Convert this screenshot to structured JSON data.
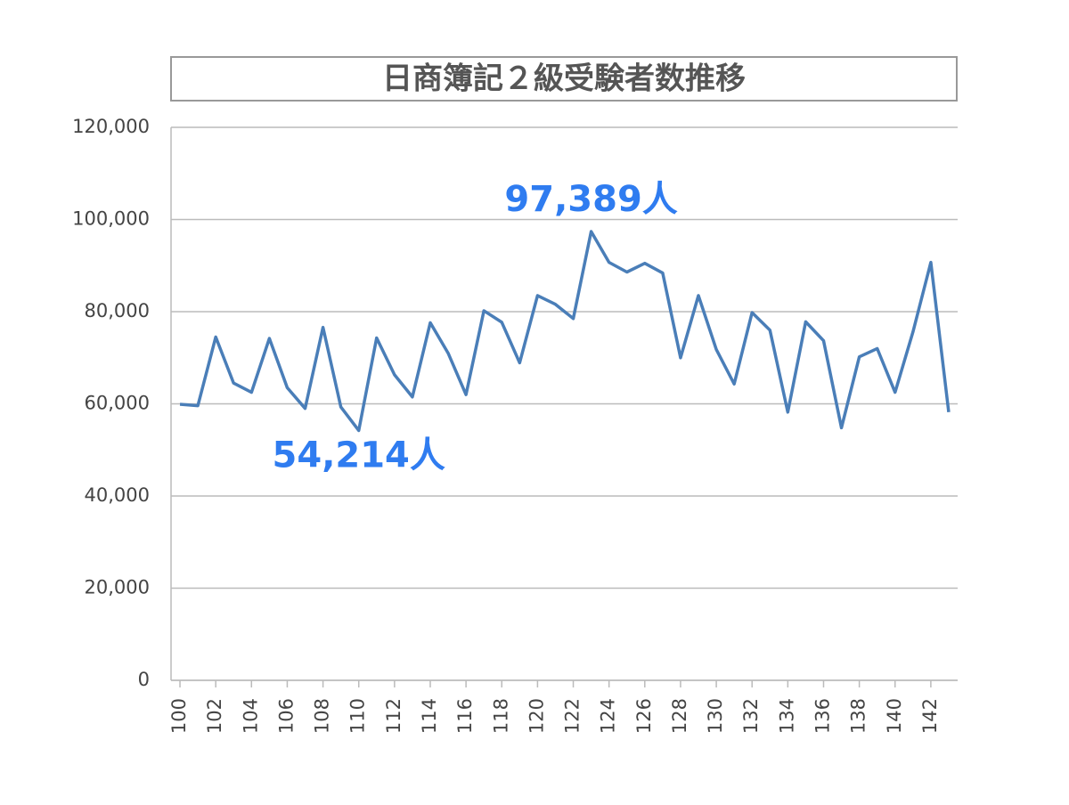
{
  "chart_data": {
    "type": "line",
    "title": "日商簿記２級受験者数推移",
    "x": [
      100,
      101,
      102,
      103,
      104,
      105,
      106,
      107,
      108,
      109,
      110,
      111,
      112,
      113,
      114,
      115,
      116,
      117,
      118,
      119,
      120,
      121,
      122,
      123,
      124,
      125,
      126,
      127,
      128,
      129,
      130,
      131,
      132,
      133,
      134,
      135,
      136,
      137,
      138,
      139,
      140,
      141,
      142,
      143
    ],
    "series": [
      {
        "color": "#4a7eb8",
        "values": [
          59900,
          59600,
          74500,
          64500,
          62500,
          74200,
          63500,
          59000,
          76600,
          59300,
          54214,
          74300,
          66300,
          61500,
          77600,
          71000,
          62000,
          80200,
          77700,
          68900,
          83500,
          81600,
          78500,
          97389,
          90700,
          88600,
          90500,
          88400,
          70000,
          83500,
          71800,
          64300,
          79800,
          76000,
          58200,
          77800,
          73700,
          54800,
          70200,
          72000,
          62500,
          75600,
          90700,
          58200
        ],
        "value_labels": [
          null,
          null,
          null,
          null,
          null,
          null,
          null,
          null,
          null,
          null,
          "54,214人",
          null,
          null,
          null,
          null,
          null,
          null,
          null,
          null,
          null,
          null,
          null,
          null,
          "97,389人",
          null,
          null,
          null,
          null,
          null,
          null,
          null,
          null,
          null,
          null,
          null,
          null,
          null,
          null,
          null,
          null,
          null,
          null,
          null,
          null
        ]
      }
    ],
    "xlim": [
      99.5,
      143.5
    ],
    "xticks": [
      100,
      102,
      104,
      106,
      108,
      110,
      112,
      114,
      116,
      118,
      120,
      122,
      124,
      126,
      128,
      130,
      132,
      134,
      136,
      138,
      140,
      142
    ],
    "ylim": [
      0,
      120000
    ],
    "yticks": [
      0,
      {
        "value": 20000,
        "label": "20,000"
      },
      {
        "value": 40000,
        "label": "40,000"
      },
      {
        "value": 60000,
        "label": "60,000"
      },
      {
        "value": 80000,
        "label": "80,000"
      },
      {
        "value": 100000,
        "label": "100,000"
      },
      {
        "value": 120000,
        "label": "120,000"
      }
    ],
    "grid": true,
    "annotation_color": "#2f7cf0"
  }
}
